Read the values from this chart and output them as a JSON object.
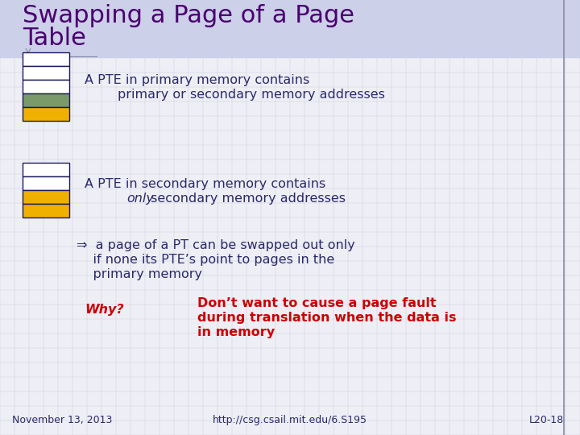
{
  "background_color": "#eeeef5",
  "title_line1": "Swapping a Page of a Page",
  "title_line2": "Table",
  "title_color": "#4a0070",
  "title_fontsize": 22,
  "body_font_color": "#2a2a6a",
  "body_fontsize": 11.5,
  "box1_colors": [
    "#ffffff",
    "#ffffff",
    "#ffffff",
    "#7a9a6a",
    "#f0b000"
  ],
  "box2_colors": [
    "#ffffff",
    "#ffffff",
    "#f0b000",
    "#f0b000"
  ],
  "box_border_color": "#1a1a5a",
  "text1_line1": "A PTE in primary memory contains",
  "text1_line2": "        primary or secondary memory addresses",
  "text2_line1": "A PTE in secondary memory contains",
  "text2_line2_pre": "        ",
  "text2_italic": "only",
  "text2_line2_post": " secondary memory addresses",
  "arrow_text_line1": "⇒  a page of a PT can be swapped out only",
  "arrow_text_line2": "    if none its PTE’s point to pages in the",
  "arrow_text_line3": "    primary memory",
  "why_label": "Why?",
  "why_color": "#cc0000",
  "why_fontsize": 11.5,
  "why_answer_line1": "Don’t want to cause a page fault",
  "why_answer_line2": "during translation when the data is",
  "why_answer_line3": "in memory",
  "why_answer_color": "#cc0000",
  "why_answer_fontsize": 11.5,
  "footer_left": "November 13, 2013",
  "footer_center": "http://csg.csail.mit.edu/6.S195",
  "footer_right": "L20-18",
  "footer_color": "#2a2a6a",
  "footer_fontsize": 9,
  "grid_color": "#d0d0e0",
  "border_color": "#8888aa",
  "header_bg_color": "#ccd0e8"
}
